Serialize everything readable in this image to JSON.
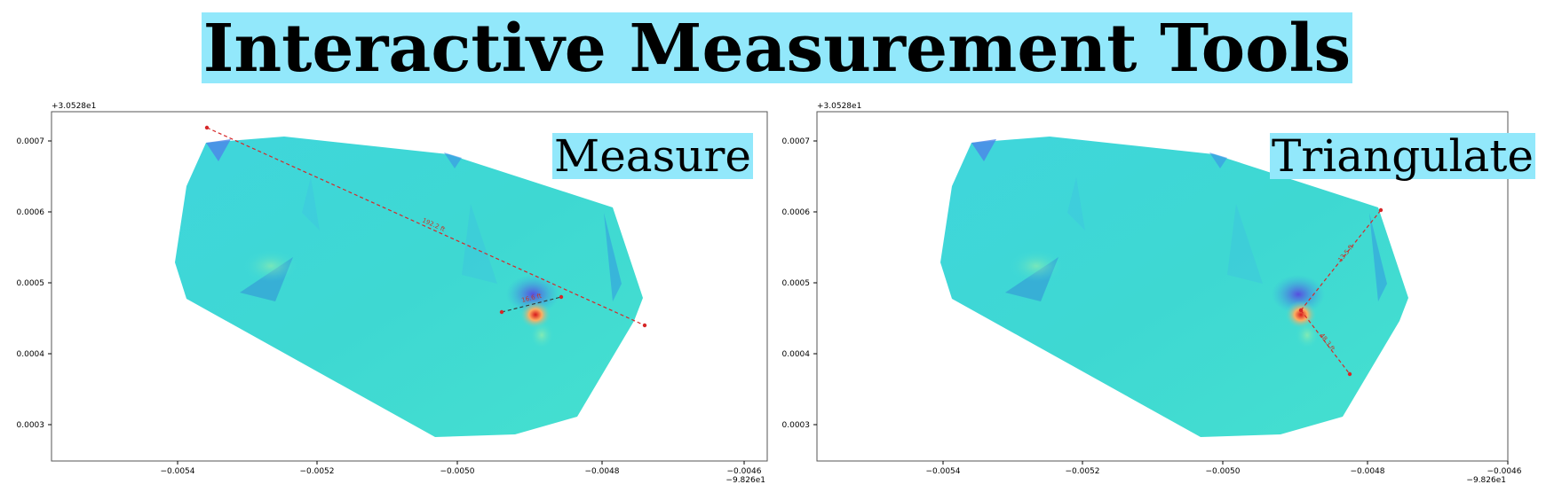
{
  "header": {
    "title": "Interactive Measurement Tools"
  },
  "axes": {
    "y_offset": "+3.0528e1",
    "x_offset": "−9.826e1",
    "x_ticks": [
      "−0.0054",
      "−0.0052",
      "−0.0050",
      "−0.0048",
      "−0.0046"
    ],
    "y_ticks": [
      "0.0007",
      "0.0006",
      "0.0005",
      "0.0004",
      "0.0003"
    ]
  },
  "panels": [
    {
      "label": "Measure",
      "measurements": [
        {
          "label": "192.2 ft"
        },
        {
          "label": "16.6 ft"
        }
      ]
    },
    {
      "label": "Triangulate",
      "measurements": [
        {
          "label": "13.5 ft"
        },
        {
          "label": "48.3 ft"
        }
      ]
    }
  ],
  "colors": {
    "label_highlight": "#92e8fb",
    "surface_base": "#40dcd6",
    "measure_line": "#d62728"
  }
}
